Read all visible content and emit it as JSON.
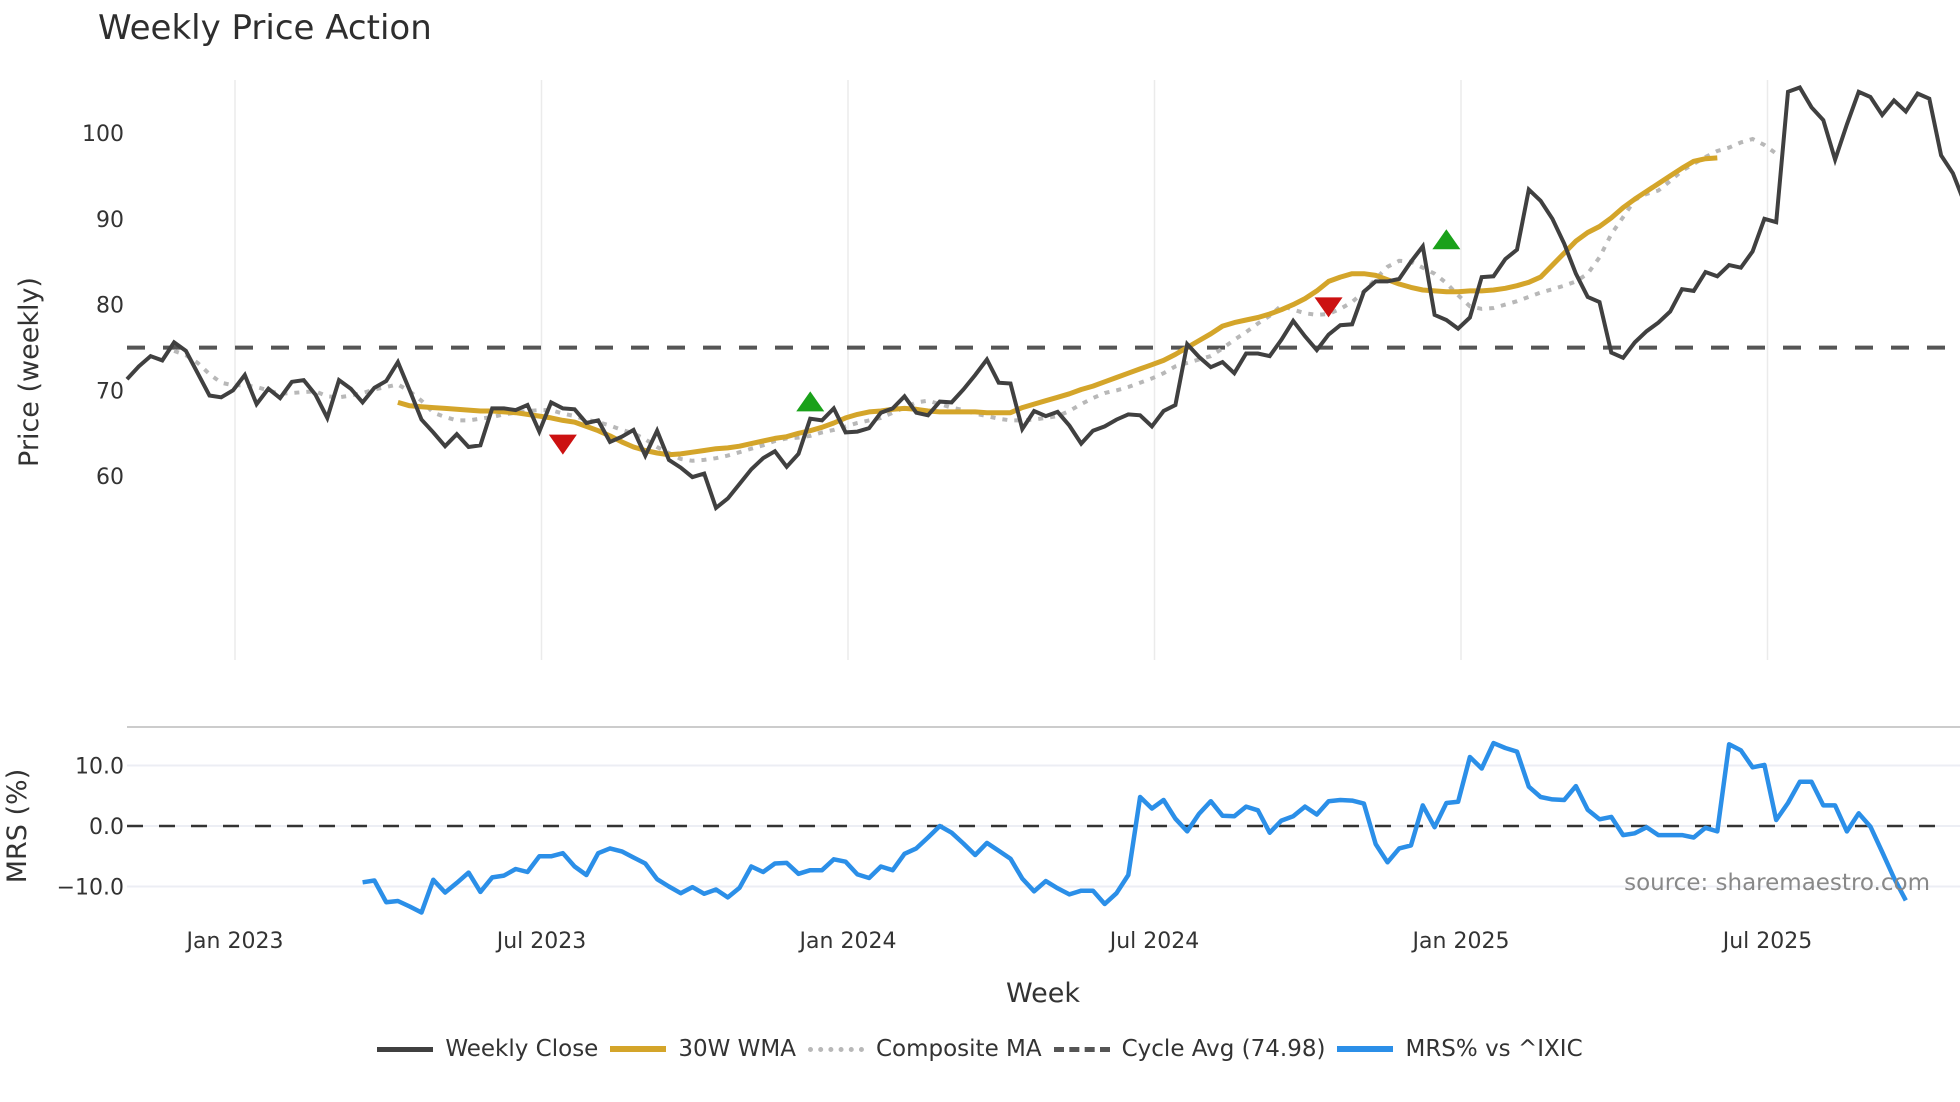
{
  "title": "Weekly Price Action",
  "source": "source: sharemaestro.com",
  "legend": [
    {
      "label": "Weekly Close",
      "color": "#404040",
      "style": "solid"
    },
    {
      "label": "30W WMA",
      "color": "#d4a52a",
      "style": "solid"
    },
    {
      "label": "Composite MA",
      "color": "#b8b8b8",
      "style": "dotted"
    },
    {
      "label": "Cycle Avg (74.98)",
      "color": "#555555",
      "style": "dashed"
    },
    {
      "label": "MRS% vs ^IXIC",
      "color": "#2b8fe8",
      "style": "solid"
    }
  ],
  "chart_data": [
    {
      "type": "line",
      "title": "Weekly Price Action",
      "xlabel": "Week",
      "ylabel": "Price (weekly)",
      "x_tick_labels": [
        "Jan 2023",
        "Jul 2023",
        "Jan 2024",
        "Jul 2024",
        "Jan 2025",
        "Jul 2025"
      ],
      "y_ticks": [
        60,
        70,
        80,
        90,
        100
      ],
      "ylim": [
        54,
        108
      ],
      "grid": "vertical",
      "reference_line": {
        "name": "Cycle Avg (74.98)",
        "value": 74.98,
        "style": "dashed"
      },
      "series": [
        {
          "name": "Weekly Close",
          "start_week_index": 0,
          "values": [
            71.3,
            72.8,
            74.0,
            73.5,
            75.6,
            74.6,
            72.0,
            69.4,
            69.2,
            70.0,
            71.8,
            68.4,
            70.2,
            69.1,
            71.0,
            71.2,
            69.5,
            66.8,
            71.2,
            70.2,
            68.6,
            70.3,
            71.1,
            73.3,
            70.0,
            66.6,
            65.1,
            63.5,
            64.9,
            63.4,
            63.6,
            67.9,
            67.9,
            67.7,
            68.3,
            65.2,
            68.6,
            67.9,
            67.8,
            66.2,
            66.5,
            64.0,
            64.6,
            65.4,
            62.4,
            65.3,
            61.9,
            61.0,
            59.9,
            60.3,
            56.3,
            57.4,
            59.1,
            60.8,
            62.1,
            62.9,
            61.1,
            62.6,
            66.7,
            66.5,
            67.9,
            65.1,
            65.2,
            65.6,
            67.4,
            67.9,
            69.3,
            67.4,
            67.1,
            68.7,
            68.6,
            70.1,
            71.8,
            73.6,
            70.9,
            70.8,
            65.5,
            67.6,
            67.0,
            67.5,
            65.9,
            63.8,
            65.3,
            65.8,
            66.6,
            67.2,
            67.1,
            65.8,
            67.6,
            68.3,
            75.4,
            73.9,
            72.7,
            73.3,
            72.0,
            74.3,
            74.3,
            74.0,
            75.9,
            78.1,
            76.3,
            74.7,
            76.5,
            77.6,
            77.7,
            81.5,
            82.7,
            82.7,
            83.0,
            85.0,
            86.8,
            78.8,
            78.2,
            77.2,
            78.5,
            83.2,
            83.3,
            85.3,
            86.4,
            93.4,
            92.1,
            90.0,
            87.1,
            83.6,
            80.9,
            80.3,
            74.4,
            73.8,
            75.6,
            76.9,
            77.9,
            79.2,
            81.8,
            81.6,
            83.8,
            83.3,
            84.6,
            84.3,
            86.2,
            90.0,
            89.6,
            104.8,
            105.3,
            103.0,
            101.5,
            96.9,
            101.0,
            104.8,
            104.2,
            102.1,
            103.8,
            102.5,
            104.6,
            104.0,
            97.4,
            95.3,
            91.8
          ]
        },
        {
          "name": "30W WMA",
          "start_week_index": 23,
          "values": [
            68.6,
            68.2,
            68.1,
            68.0,
            67.9,
            67.8,
            67.7,
            67.6,
            67.6,
            67.5,
            67.4,
            67.2,
            67.0,
            66.8,
            66.5,
            66.3,
            65.8,
            65.3,
            64.7,
            64.0,
            63.4,
            63.0,
            62.7,
            62.5,
            62.6,
            62.8,
            63.0,
            63.2,
            63.3,
            63.5,
            63.8,
            64.1,
            64.4,
            64.6,
            65.0,
            65.3,
            65.7,
            66.2,
            66.8,
            67.2,
            67.5,
            67.6,
            67.8,
            67.9,
            67.8,
            67.6,
            67.5,
            67.5,
            67.5,
            67.5,
            67.4,
            67.4,
            67.4,
            68.0,
            68.4,
            68.8,
            69.2,
            69.6,
            70.1,
            70.5,
            71.0,
            71.5,
            72.0,
            72.5,
            73.0,
            73.5,
            74.2,
            75.0,
            75.8,
            76.6,
            77.5,
            77.9,
            78.2,
            78.5,
            78.9,
            79.4,
            80.0,
            80.7,
            81.6,
            82.7,
            83.2,
            83.6,
            83.6,
            83.4,
            82.9,
            82.4,
            82.0,
            81.7,
            81.6,
            81.5,
            81.5,
            81.6,
            81.6,
            81.7,
            81.9,
            82.2,
            82.6,
            83.2,
            84.6,
            86.0,
            87.4,
            88.4,
            89.1,
            90.1,
            91.3,
            92.3,
            93.2,
            94.1,
            95.0,
            95.9,
            96.7,
            97.0,
            97.1
          ]
        },
        {
          "name": "Composite MA",
          "start_week_index": 4,
          "values": [
            74.6,
            74.1,
            73.2,
            71.9,
            70.9,
            70.6,
            70.6,
            70.4,
            70.0,
            69.6,
            69.7,
            69.8,
            69.9,
            69.3,
            69.2,
            69.4,
            69.7,
            70.1,
            70.4,
            70.7,
            69.9,
            68.8,
            67.4,
            66.9,
            66.5,
            66.5,
            66.7,
            66.9,
            67.2,
            67.4,
            67.6,
            67.7,
            67.7,
            67.3,
            67.0,
            66.6,
            66.3,
            65.9,
            65.4,
            65.0,
            64.3,
            63.4,
            62.7,
            62.0,
            61.8,
            61.9,
            62.1,
            62.4,
            62.8,
            63.2,
            63.6,
            64.1,
            64.4,
            64.5,
            64.7,
            65.1,
            65.4,
            65.8,
            66.2,
            66.5,
            66.8,
            67.4,
            68.0,
            68.6,
            68.8,
            68.4,
            68.0,
            67.7,
            67.3,
            67.0,
            66.7,
            66.5,
            66.5,
            66.6,
            66.8,
            67.0,
            67.6,
            68.4,
            69.1,
            69.7,
            70.0,
            70.4,
            70.9,
            71.4,
            72.0,
            72.8,
            73.2,
            73.6,
            74.0,
            74.9,
            75.9,
            76.8,
            77.8,
            78.7,
            79.9,
            79.4,
            79.0,
            78.8,
            78.9,
            79.5,
            80.3,
            81.5,
            83.0,
            84.4,
            85.1,
            85.0,
            84.3,
            83.6,
            82.5,
            81.1,
            79.8,
            79.5,
            79.6,
            80.0,
            80.4,
            80.9,
            81.4,
            81.8,
            82.2,
            82.7,
            83.6,
            85.5,
            88.2,
            90.2,
            92.2,
            92.9,
            93.3,
            94.4,
            95.6,
            96.4,
            97.2,
            97.9,
            98.3,
            98.9,
            99.3,
            98.6,
            97.6
          ]
        },
        {
          "name": "Buy/Sell signals",
          "markers": [
            {
              "type": "sell",
              "color": "#cc1111",
              "week_index": 37,
              "value": 63.8
            },
            {
              "type": "buy",
              "color": "#1aa11a",
              "week_index": 58,
              "value": 68.6
            },
            {
              "type": "sell",
              "color": "#cc1111",
              "week_index": 102,
              "value": 79.8
            },
            {
              "type": "buy",
              "color": "#1aa11a",
              "week_index": 112,
              "value": 87.5
            }
          ]
        }
      ]
    },
    {
      "type": "line",
      "xlabel": "Week",
      "ylabel": "MRS (%)",
      "y_ticks": [
        -10.0,
        0.0,
        10.0
      ],
      "y_tick_labels": [
        "−10.0",
        "0.0",
        "10.0"
      ],
      "ylim": [
        -17,
        18
      ],
      "reference_line": {
        "value": 0.0,
        "style": "dashed"
      },
      "series": [
        {
          "name": "MRS% vs ^IXIC",
          "start_week_index": 20,
          "values": [
            -9.3,
            -9.0,
            -12.6,
            -12.4,
            -13.3,
            -14.3,
            -8.9,
            -11.0,
            -9.4,
            -7.7,
            -10.9,
            -8.5,
            -8.2,
            -7.1,
            -7.6,
            -5.0,
            -5.0,
            -4.5,
            -6.7,
            -8.1,
            -4.5,
            -3.7,
            -4.2,
            -5.2,
            -6.2,
            -8.8,
            -10.0,
            -11.1,
            -10.1,
            -11.2,
            -10.5,
            -11.8,
            -10.2,
            -6.7,
            -7.6,
            -6.2,
            -6.1,
            -7.9,
            -7.3,
            -7.3,
            -5.5,
            -5.9,
            -8.0,
            -8.6,
            -6.7,
            -7.3,
            -4.6,
            -3.7,
            -1.9,
            0.0,
            -1.1,
            -2.9,
            -4.8,
            -2.8,
            -4.1,
            -5.4,
            -8.7,
            -10.8,
            -9.1,
            -10.3,
            -11.3,
            -10.7,
            -10.7,
            -12.9,
            -11.1,
            -8.1,
            4.8,
            2.9,
            4.3,
            1.2,
            -0.9,
            2.0,
            4.1,
            1.7,
            1.6,
            3.2,
            2.6,
            -1.1,
            0.9,
            1.6,
            3.2,
            1.9,
            4.1,
            4.3,
            4.2,
            3.7,
            -3.0,
            -6.0,
            -3.7,
            -3.2,
            3.4,
            -0.2,
            3.8,
            4.0,
            11.4,
            9.5,
            13.7,
            12.9,
            12.3,
            6.5,
            4.8,
            4.4,
            4.3,
            6.6,
            2.7,
            1.1,
            1.5,
            -1.5,
            -1.2,
            -0.2,
            -1.5,
            -1.5,
            -1.5,
            -1.9,
            -0.3,
            -0.9,
            13.5,
            12.5,
            9.7,
            10.1,
            1.0,
            3.8,
            7.3,
            7.3,
            3.4,
            3.4,
            -0.9,
            2.1,
            -0.1,
            -4.3,
            -8.6,
            -12.3
          ]
        }
      ]
    }
  ]
}
